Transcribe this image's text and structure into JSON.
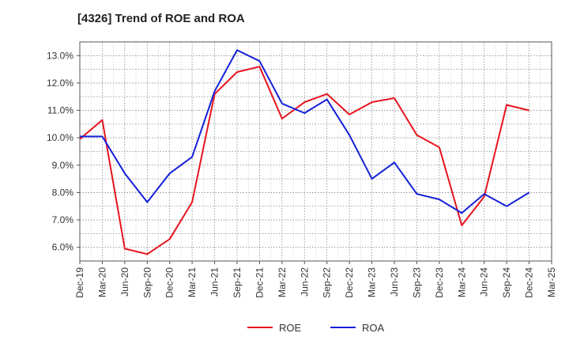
{
  "chart_data": {
    "type": "line",
    "title": "[4326]  Trend of ROE and ROA",
    "xlabel": "",
    "ylabel": "",
    "categories": [
      "Dec-19",
      "Mar-20",
      "Jun-20",
      "Sep-20",
      "Dec-20",
      "Mar-21",
      "Jun-21",
      "Sep-21",
      "Dec-21",
      "Mar-22",
      "Jun-22",
      "Sep-22",
      "Dec-22",
      "Mar-23",
      "Jun-23",
      "Sep-23",
      "Dec-23",
      "Mar-24",
      "Jun-24",
      "Sep-24",
      "Dec-24",
      "Mar-25"
    ],
    "ylim": [
      5.5,
      13.5
    ],
    "yticks": [
      6.0,
      7.0,
      8.0,
      9.0,
      10.0,
      11.0,
      12.0,
      13.0
    ],
    "ytick_labels": [
      "6.0%",
      "7.0%",
      "8.0%",
      "9.0%",
      "10.0%",
      "11.0%",
      "12.0%",
      "13.0%"
    ],
    "grid": true,
    "legend_position": "bottom-center",
    "series": [
      {
        "name": "ROE",
        "color": "#e8141e",
        "values": [
          9.95,
          10.65,
          5.95,
          5.75,
          6.3,
          7.65,
          11.6,
          12.4,
          12.6,
          10.7,
          11.3,
          11.6,
          10.85,
          11.3,
          11.45,
          10.1,
          9.65,
          6.8,
          7.85,
          11.2,
          11.0,
          null
        ]
      },
      {
        "name": "ROA",
        "color": "#1420d8",
        "values": [
          10.05,
          10.05,
          8.7,
          7.65,
          8.7,
          9.3,
          11.7,
          13.2,
          12.8,
          11.25,
          10.9,
          11.4,
          10.1,
          8.5,
          9.1,
          7.95,
          7.75,
          7.25,
          7.95,
          7.5,
          8.0,
          null
        ]
      }
    ]
  }
}
